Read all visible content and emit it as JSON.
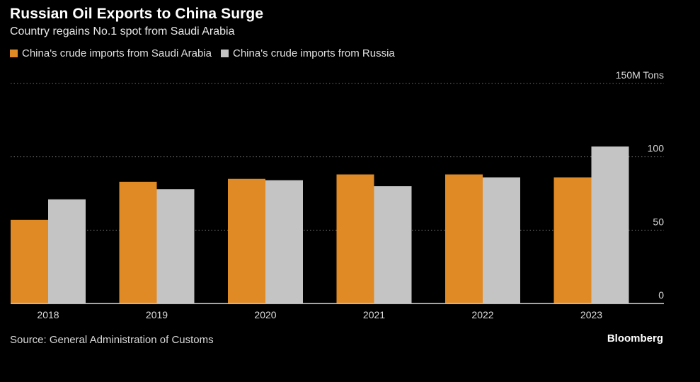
{
  "header": {
    "title": "Russian Oil Exports to China Surge",
    "subtitle": "Country regains No.1 spot from Saudi Arabia"
  },
  "colors": {
    "saudi": "#df8a25",
    "russia": "#c4c4c4",
    "grid": "#6e6e6e",
    "axis": "#dcdcdc",
    "background": "#000000"
  },
  "footer": {
    "source": "Source: General Administration of Customs",
    "brand": "Bloomberg"
  },
  "chart_data": {
    "type": "bar",
    "title": "Russian Oil Exports to China Surge",
    "subtitle": "Country regains No.1 spot from Saudi Arabia",
    "categories": [
      "2018",
      "2019",
      "2020",
      "2021",
      "2022",
      "2023"
    ],
    "series": [
      {
        "name": "China's crude imports from Saudi Arabia",
        "values": [
          57,
          83,
          85,
          88,
          88,
          86
        ]
      },
      {
        "name": "China's crude imports from Russia",
        "values": [
          71,
          78,
          84,
          80,
          86,
          107
        ]
      }
    ],
    "ylim": [
      0,
      150
    ],
    "yticks": [
      {
        "value": 0,
        "label": "0"
      },
      {
        "value": 50,
        "label": "50"
      },
      {
        "value": 100,
        "label": "100"
      },
      {
        "value": 150,
        "label": "150M Tons"
      }
    ],
    "xlabel": "",
    "ylabel": "",
    "grid": true,
    "legend_position": "top-left"
  }
}
